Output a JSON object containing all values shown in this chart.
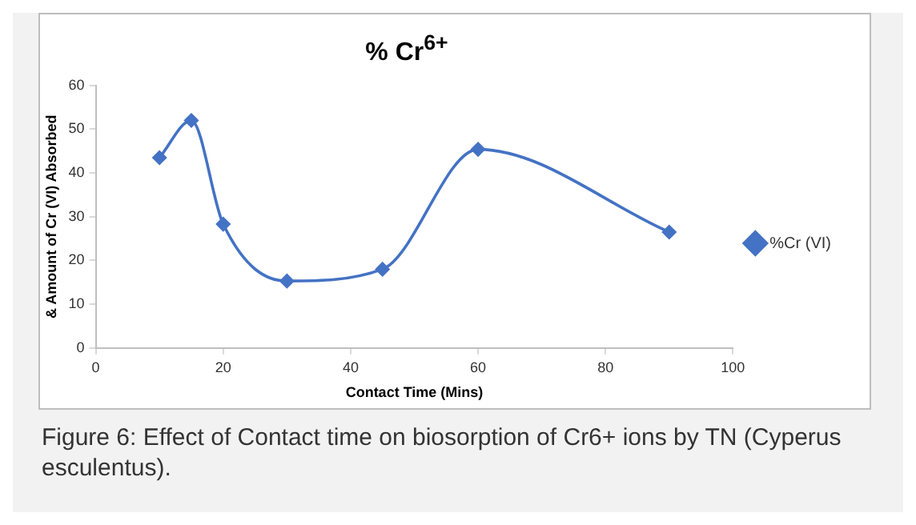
{
  "chart_data": {
    "type": "line",
    "title": "% Cr$^{6+}$",
    "xlabel": "Contact Time (Mins)",
    "ylabel": "& Amount of Cr (VI) Absorbed",
    "x": [
      10,
      15,
      20,
      30,
      45,
      60,
      90
    ],
    "series": [
      {
        "name": "%Cr (VI)",
        "color": "#4472c4",
        "values": [
          43.5,
          52,
          28.3,
          15.3,
          18,
          45.4,
          26.5
        ]
      }
    ],
    "xlim": [
      0,
      100
    ],
    "xticks": [
      0,
      20,
      40,
      60,
      80,
      100
    ],
    "ylim": [
      0,
      60
    ],
    "yticks": [
      0,
      10,
      20,
      30,
      40,
      50,
      60
    ],
    "grid": false,
    "legend": "right",
    "marker": "diamond",
    "line_style": "solid",
    "annotations": [
      "Figure 6:  Effect of Contact time on biosorption of Cr6+ ions by TN (Cyperus esculentus)."
    ]
  }
}
